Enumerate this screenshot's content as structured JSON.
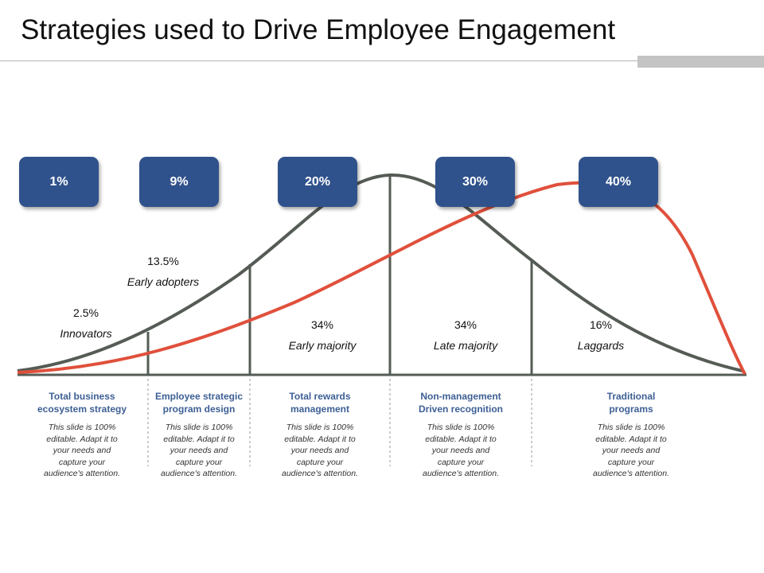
{
  "slide": {
    "title": "Strategies used to Drive Employee Engagement"
  },
  "colors": {
    "box_fill": "#30528c",
    "bell_curve": "#555c55",
    "red_curve": "#e0503c",
    "column_heading": "#3d5f94"
  },
  "percent_boxes": [
    {
      "label": "1%"
    },
    {
      "label": "9%"
    },
    {
      "label": "20%"
    },
    {
      "label": "30%"
    },
    {
      "label": "40%"
    }
  ],
  "segments": [
    {
      "pct": "2.5%",
      "name": "Innovators"
    },
    {
      "pct": "13.5%",
      "name": "Early adopters"
    },
    {
      "pct": "34%",
      "name": "Early majority"
    },
    {
      "pct": "34%",
      "name": "Late majority"
    },
    {
      "pct": "16%",
      "name": "Laggards"
    }
  ],
  "columns": [
    {
      "heading_line1": "Total business",
      "heading_line2": "ecosystem  strategy",
      "desc": [
        "This slide is 100%",
        "editable. Adapt it to",
        "your needs and",
        "capture your",
        "audience's attention."
      ]
    },
    {
      "heading_line1": "Employee strategic",
      "heading_line2": "program design",
      "desc": [
        "This slide is 100%",
        "editable. Adapt it to",
        "your needs and",
        "capture your",
        "audience's attention."
      ]
    },
    {
      "heading_line1": "Total rewards",
      "heading_line2": "management",
      "desc": [
        "This slide is 100%",
        "editable. Adapt it to",
        "your needs and",
        "capture your",
        "audience's attention."
      ]
    },
    {
      "heading_line1": "Non-management",
      "heading_line2": "Driven recognition",
      "desc": [
        "This slide is 100%",
        "editable. Adapt it to",
        "your needs and",
        "capture your",
        "audience's attention."
      ]
    },
    {
      "heading_line1": "Traditional",
      "heading_line2": "programs",
      "desc": [
        "This slide is 100%",
        "editable. Adapt it to",
        "your needs and",
        "capture your",
        "audience's attention."
      ]
    }
  ]
}
